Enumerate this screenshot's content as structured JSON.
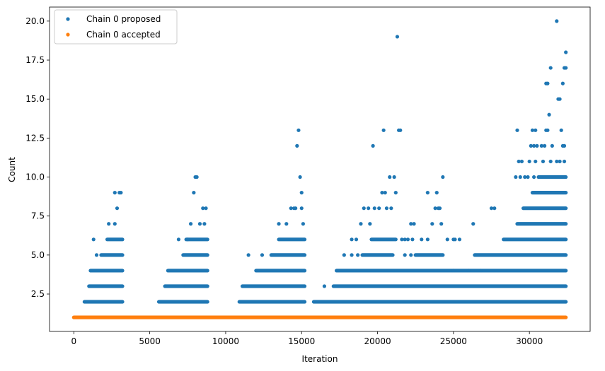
{
  "chart_data": {
    "type": "scatter",
    "title": "",
    "xlabel": "Iteration",
    "ylabel": "Count",
    "xlim": [
      -1600,
      34000
    ],
    "ylim": [
      0.1,
      20.9
    ],
    "xticks": [
      0,
      5000,
      10000,
      15000,
      20000,
      25000,
      30000
    ],
    "xtick_labels": [
      "0",
      "5000",
      "10000",
      "15000",
      "20000",
      "25000",
      "30000"
    ],
    "yticks": [
      2.5,
      5.0,
      7.5,
      10.0,
      12.5,
      15.0,
      17.5,
      20.0
    ],
    "ytick_labels": [
      "2.5",
      "5.0",
      "7.5",
      "10.0",
      "12.5",
      "15.0",
      "17.5",
      "20.0"
    ],
    "grid": false,
    "legend_position": "top-left",
    "series": [
      {
        "name": "Chain 0 proposed",
        "color": "#1f77b4",
        "bands": [
          {
            "x": [
              700,
              3200
            ],
            "y": 2
          },
          {
            "x": [
              1000,
              3200
            ],
            "y": 3
          },
          {
            "x": [
              1100,
              3200
            ],
            "y": 4
          },
          {
            "x": [
              1800,
              3200
            ],
            "y": 5
          },
          {
            "x": [
              2200,
              3200
            ],
            "y": 6
          },
          {
            "x": [
              5600,
              8800
            ],
            "y": 2
          },
          {
            "x": [
              6000,
              8800
            ],
            "y": 3
          },
          {
            "x": [
              6200,
              8800
            ],
            "y": 4
          },
          {
            "x": [
              7200,
              8800
            ],
            "y": 5
          },
          {
            "x": [
              7400,
              8800
            ],
            "y": 6
          },
          {
            "x": [
              10900,
              15200
            ],
            "y": 2
          },
          {
            "x": [
              11100,
              15200
            ],
            "y": 3
          },
          {
            "x": [
              12000,
              15200
            ],
            "y": 4
          },
          {
            "x": [
              13000,
              15200
            ],
            "y": 5
          },
          {
            "x": [
              13500,
              15200
            ],
            "y": 6
          },
          {
            "x": [
              15800,
              32400
            ],
            "y": 2
          },
          {
            "x": [
              17100,
              32400
            ],
            "y": 3
          },
          {
            "x": [
              17300,
              32400
            ],
            "y": 4
          },
          {
            "x": [
              19000,
              21000
            ],
            "y": 5
          },
          {
            "x": [
              22500,
              24300
            ],
            "y": 5
          },
          {
            "x": [
              26400,
              32400
            ],
            "y": 5
          },
          {
            "x": [
              19600,
              21200
            ],
            "y": 6
          },
          {
            "x": [
              28300,
              32400
            ],
            "y": 6
          },
          {
            "x": [
              29200,
              32400
            ],
            "y": 7
          },
          {
            "x": [
              29600,
              32400
            ],
            "y": 8
          },
          {
            "x": [
              30200,
              32400
            ],
            "y": 9
          },
          {
            "x": [
              30600,
              32400
            ],
            "y": 10
          }
        ],
        "points": [
          [
            2700,
            9
          ],
          [
            3000,
            9
          ],
          [
            3100,
            9
          ],
          [
            2850,
            8
          ],
          [
            2300,
            7
          ],
          [
            2700,
            7
          ],
          [
            1300,
            6
          ],
          [
            1500,
            5
          ],
          [
            8000,
            10
          ],
          [
            8100,
            10
          ],
          [
            7900,
            9
          ],
          [
            8500,
            8
          ],
          [
            8700,
            8
          ],
          [
            7700,
            7
          ],
          [
            8300,
            7
          ],
          [
            8600,
            7
          ],
          [
            6900,
            6
          ],
          [
            7500,
            6
          ],
          [
            14800,
            13
          ],
          [
            14700,
            12
          ],
          [
            14900,
            10
          ],
          [
            15000,
            9
          ],
          [
            14300,
            8
          ],
          [
            14500,
            8
          ],
          [
            14600,
            8
          ],
          [
            15000,
            8
          ],
          [
            13500,
            7
          ],
          [
            14000,
            7
          ],
          [
            15100,
            7
          ],
          [
            11500,
            5
          ],
          [
            12400,
            5
          ],
          [
            21300,
            19
          ],
          [
            20400,
            13
          ],
          [
            21400,
            13
          ],
          [
            21500,
            13
          ],
          [
            19700,
            12
          ],
          [
            20800,
            10
          ],
          [
            21100,
            10
          ],
          [
            20300,
            9
          ],
          [
            20500,
            9
          ],
          [
            21200,
            9
          ],
          [
            24300,
            10
          ],
          [
            19100,
            8
          ],
          [
            19400,
            8
          ],
          [
            19800,
            8
          ],
          [
            20100,
            8
          ],
          [
            20600,
            8
          ],
          [
            20900,
            8
          ],
          [
            23800,
            8
          ],
          [
            24000,
            8
          ],
          [
            24100,
            8
          ],
          [
            23300,
            9
          ],
          [
            23900,
            9
          ],
          [
            18900,
            7
          ],
          [
            19500,
            7
          ],
          [
            22200,
            7
          ],
          [
            22400,
            7
          ],
          [
            23600,
            7
          ],
          [
            24200,
            7
          ],
          [
            25000,
            6
          ],
          [
            25400,
            6
          ],
          [
            26300,
            7
          ],
          [
            27500,
            8
          ],
          [
            27700,
            8
          ],
          [
            18300,
            6
          ],
          [
            18600,
            6
          ],
          [
            21600,
            6
          ],
          [
            21800,
            6
          ],
          [
            22000,
            6
          ],
          [
            22300,
            6
          ],
          [
            22900,
            6
          ],
          [
            23300,
            6
          ],
          [
            24600,
            6
          ],
          [
            25100,
            6
          ],
          [
            17800,
            5
          ],
          [
            18300,
            5
          ],
          [
            18700,
            5
          ],
          [
            21800,
            5
          ],
          [
            22200,
            5
          ],
          [
            16500,
            3
          ],
          [
            25000,
            4
          ],
          [
            26000,
            4
          ],
          [
            26800,
            4
          ],
          [
            31800,
            20
          ],
          [
            32400,
            18
          ],
          [
            31400,
            17
          ],
          [
            32300,
            17
          ],
          [
            32400,
            17
          ],
          [
            31100,
            16
          ],
          [
            31200,
            16
          ],
          [
            32200,
            16
          ],
          [
            31900,
            15
          ],
          [
            32000,
            15
          ],
          [
            31300,
            14
          ],
          [
            29200,
            13
          ],
          [
            30200,
            13
          ],
          [
            30400,
            13
          ],
          [
            31100,
            13
          ],
          [
            31200,
            13
          ],
          [
            32100,
            13
          ],
          [
            30100,
            12
          ],
          [
            30300,
            12
          ],
          [
            30500,
            12
          ],
          [
            30800,
            12
          ],
          [
            31000,
            12
          ],
          [
            31500,
            12
          ],
          [
            32200,
            12
          ],
          [
            32300,
            12
          ],
          [
            29300,
            11
          ],
          [
            29500,
            11
          ],
          [
            30000,
            11
          ],
          [
            30400,
            11
          ],
          [
            30900,
            11
          ],
          [
            31400,
            11
          ],
          [
            31800,
            11
          ],
          [
            32000,
            11
          ],
          [
            32300,
            11
          ],
          [
            29100,
            10
          ],
          [
            29400,
            10
          ],
          [
            29700,
            10
          ],
          [
            29900,
            10
          ],
          [
            30300,
            10
          ]
        ]
      },
      {
        "name": "Chain 0 accepted",
        "color": "#ff7f0e",
        "bands": [
          {
            "x": [
              0,
              32400
            ],
            "y": 1
          }
        ],
        "points": []
      }
    ]
  }
}
